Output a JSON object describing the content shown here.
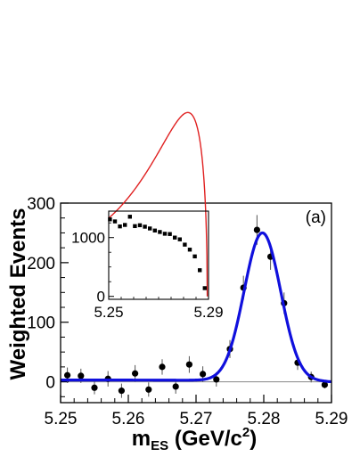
{
  "chart_data": [
    {
      "type": "scatter",
      "title": "",
      "panel_label": "(a)",
      "xlabel": "m",
      "xlabel_subscript": "ES",
      "xlabel_unit_prefix": " (GeV/c",
      "xlabel_unit_superscript": "2",
      "xlabel_unit_suffix": ")",
      "ylabel": "Weighted Events",
      "xlim": [
        5.25,
        5.29
      ],
      "ylim": [
        -35,
        300
      ],
      "x_ticks": [
        5.25,
        5.26,
        5.27,
        5.28,
        5.29
      ],
      "x_tick_labels": [
        "5.25",
        "5.26",
        "5.27",
        "5.28",
        "5.29"
      ],
      "y_ticks": [
        0,
        100,
        200,
        300
      ],
      "y_tick_labels": [
        "0",
        "100",
        "200",
        "300"
      ],
      "grid": false,
      "zero_line": true,
      "colors": {
        "points": "#000000",
        "fit": "#1010dd",
        "zero_line": "#888888"
      },
      "series": [
        {
          "kind": "points_with_errors",
          "x": [
            5.251,
            5.253,
            5.255,
            5.257,
            5.259,
            5.261,
            5.263,
            5.265,
            5.267,
            5.269,
            5.271,
            5.273,
            5.275,
            5.277,
            5.279,
            5.281,
            5.283,
            5.285,
            5.287,
            5.289
          ],
          "y": [
            11,
            10,
            -10,
            5,
            -15,
            14,
            -13,
            25,
            -8,
            29,
            13,
            4,
            55,
            158,
            255,
            210,
            132,
            32,
            8,
            -5
          ],
          "yerr": [
            13,
            12,
            11,
            13,
            12,
            14,
            12,
            13,
            12,
            14,
            13,
            12,
            15,
            20,
            25,
            22,
            18,
            12,
            9,
            6
          ]
        },
        {
          "kind": "fit_curve",
          "function": "gaussian_plus_background",
          "peak_x": 5.2798,
          "peak_y": 248,
          "sigma": 0.0027
        }
      ]
    },
    {
      "type": "scatter",
      "title": "",
      "inset": true,
      "xlabel": "",
      "ylabel": "",
      "xlim": [
        5.25,
        5.29
      ],
      "ylim": [
        -50,
        1450
      ],
      "x_ticks": [
        5.25,
        5.29
      ],
      "x_tick_labels": [
        "5.25",
        "5.29"
      ],
      "y_ticks": [
        0,
        1000
      ],
      "y_tick_labels": [
        "0",
        "1000"
      ],
      "grid": false,
      "colors": {
        "points": "#000000",
        "fit": "#e02020"
      },
      "series": [
        {
          "kind": "points",
          "x": [
            5.2505,
            5.2525,
            5.2545,
            5.2565,
            5.2585,
            5.2605,
            5.2625,
            5.2645,
            5.2665,
            5.2685,
            5.2705,
            5.2725,
            5.2745,
            5.2765,
            5.2785,
            5.2805,
            5.2825,
            5.2845,
            5.2865,
            5.2885
          ],
          "y": [
            1310,
            1275,
            1190,
            1215,
            1355,
            1195,
            1210,
            1185,
            1155,
            1120,
            1095,
            1065,
            1060,
            1000,
            970,
            880,
            795,
            680,
            445,
            140
          ]
        },
        {
          "kind": "fit_curve",
          "function": "argus",
          "endpoint": 5.2895,
          "amplitude": 1330
        }
      ]
    }
  ]
}
